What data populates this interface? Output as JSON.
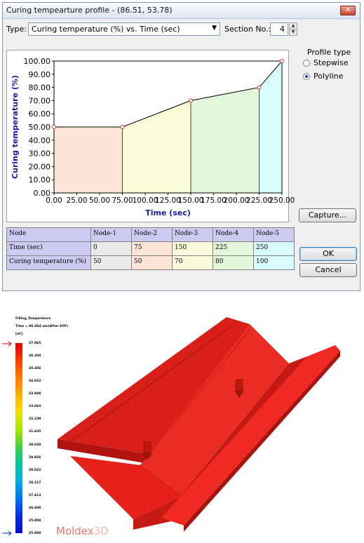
{
  "window": {
    "title": "Curing tempearture profile - (86.51, 53.78)",
    "close_glyph": "✕"
  },
  "type_row": {
    "type_label": "Type:",
    "type_value": "Curing temperature (%) vs. Time (sec)",
    "section_label": "Section No.:",
    "section_value": "4"
  },
  "profile_type": {
    "label": "Profile type",
    "options": [
      {
        "label": "Stepwise",
        "selected": false
      },
      {
        "label": "Polyline",
        "selected": true
      }
    ]
  },
  "buttons": {
    "capture": "Capture...",
    "ok": "OK",
    "cancel": "Cancel"
  },
  "chart_data": {
    "type": "area",
    "xlabel": "Time (sec)",
    "ylabel": "Curing temperature (%)",
    "x": [
      0,
      75,
      150,
      225,
      250
    ],
    "y": [
      50,
      50,
      70,
      80,
      100
    ],
    "xlim": [
      0,
      250
    ],
    "ylim": [
      0,
      100
    ],
    "xticks": [
      "0.00",
      "25.00",
      "50.00",
      "75.00",
      "100.00",
      "125.00",
      "150.00",
      "175.00",
      "200.00",
      "225.00",
      "250.00"
    ],
    "yticks": [
      "0.00",
      "10.00",
      "20.00",
      "30.00",
      "40.00",
      "50.00",
      "60.00",
      "70.00",
      "80.00",
      "90.00",
      "100.00"
    ],
    "section_fill_colors": [
      "#fde4d8",
      "#fbfbd8",
      "#e2f6dc",
      "#d8fbfb"
    ],
    "line_color": "#000000",
    "marker_color": "#e03030",
    "axis_label_color": "#1a1aa8"
  },
  "table": {
    "headers": [
      "Node",
      "Node-1",
      "Node-2",
      "Node-3",
      "Node-4",
      "Node-5"
    ],
    "rows": [
      {
        "label": "Time (sec)",
        "values": [
          "0",
          "75",
          "150",
          "225",
          "250"
        ]
      },
      {
        "label": "Curing temperature (%)",
        "values": [
          "50",
          "50",
          "70",
          "80",
          "100"
        ]
      }
    ]
  },
  "simulation": {
    "legend_title": "Filling_Temperature",
    "legend_time": "Time = 86.064 sec(After EOF)",
    "unit": "[oC]",
    "scale_labels": [
      "37.065",
      "36.260",
      "35.456",
      "34.652",
      "33.848",
      "33.043",
      "32.239",
      "31.435",
      "30.630",
      "29.826",
      "29.022",
      "28.217",
      "27.413",
      "26.609",
      "25.804",
      "25.000"
    ],
    "logo_text": "Moldex",
    "logo_suffix": "3D",
    "part_color": "#e8201c"
  }
}
